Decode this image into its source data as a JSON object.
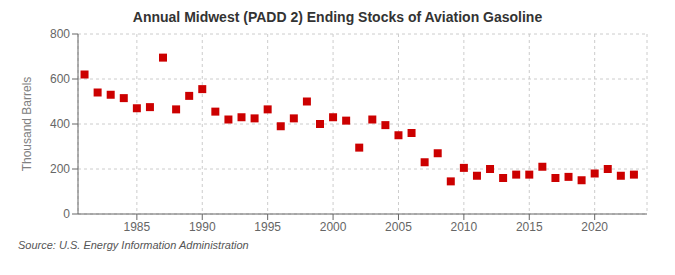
{
  "chart_data": {
    "type": "scatter",
    "title": "Annual Midwest (PADD 2) Ending Stocks of Aviation Gasoline",
    "y_label": "Thousand Barrels",
    "annotations": [
      "Source: U.S. Energy Information Administration"
    ],
    "x": [
      1981,
      1982,
      1983,
      1984,
      1985,
      1986,
      1987,
      1988,
      1989,
      1990,
      1991,
      1992,
      1993,
      1994,
      1995,
      1996,
      1997,
      1998,
      1999,
      2000,
      2001,
      2002,
      2003,
      2004,
      2005,
      2006,
      2007,
      2008,
      2009,
      2010,
      2011,
      2012,
      2013,
      2014,
      2015,
      2016,
      2017,
      2018,
      2019,
      2020,
      2021,
      2022,
      2023
    ],
    "values": [
      620,
      540,
      530,
      515,
      470,
      475,
      695,
      465,
      525,
      555,
      455,
      420,
      430,
      425,
      465,
      390,
      425,
      500,
      400,
      430,
      415,
      295,
      420,
      395,
      350,
      360,
      230,
      270,
      145,
      205,
      170,
      200,
      160,
      175,
      175,
      210,
      160,
      165,
      150,
      180,
      200,
      170,
      175
    ],
    "color": "#cc0000",
    "marker": "square",
    "xlim": [
      1980.5,
      2024
    ],
    "xticks": [
      1985,
      1990,
      1995,
      2000,
      2005,
      2010,
      2015,
      2020
    ],
    "ylim": [
      0,
      800
    ],
    "yticks": [
      0,
      200,
      400,
      600,
      800
    ],
    "grid": true
  }
}
